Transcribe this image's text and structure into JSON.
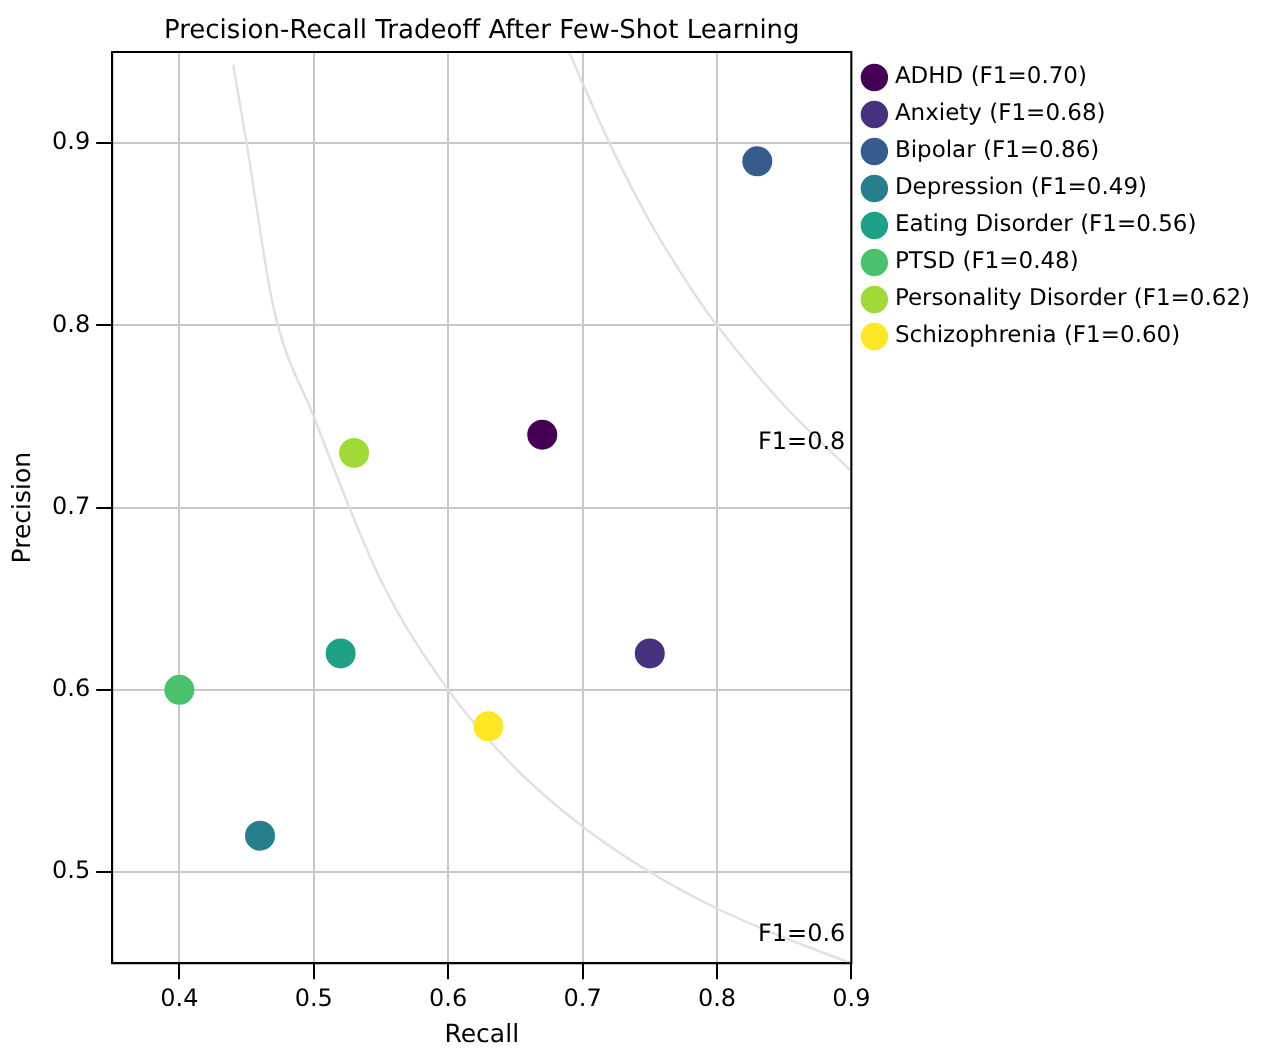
{
  "chart_data": {
    "type": "scatter",
    "title": "Precision-Recall Tradeoff After Few-Shot Learning",
    "xlabel": "Recall",
    "ylabel": "Precision",
    "xlim": [
      0.35,
      0.9
    ],
    "xticks": [
      0.4,
      0.5,
      0.6,
      0.7,
      0.8,
      0.9
    ],
    "ylim": [
      0.45,
      0.95
    ],
    "yticks": [
      0.5,
      0.6,
      0.7,
      0.8,
      0.9
    ],
    "grid": true,
    "legend": "top right",
    "marker": "circle",
    "series": [
      {
        "name": "ADHD (F1=0.70)",
        "color": "#440154",
        "x": [
          0.67
        ],
        "values": [
          0.74
        ]
      },
      {
        "name": "Anxiety (F1=0.68)",
        "color": "#46327e",
        "x": [
          0.75
        ],
        "values": [
          0.62
        ]
      },
      {
        "name": "Bipolar (F1=0.86)",
        "color": "#365c8d",
        "x": [
          0.83
        ],
        "values": [
          0.89
        ]
      },
      {
        "name": "Depression (F1=0.49)",
        "color": "#277f8e",
        "x": [
          0.46
        ],
        "values": [
          0.52
        ]
      },
      {
        "name": "Eating Disorder (F1=0.56)",
        "color": "#1fa187",
        "x": [
          0.52
        ],
        "values": [
          0.62
        ]
      },
      {
        "name": "PTSD (F1=0.48)",
        "color": "#4ac16d",
        "x": [
          0.4
        ],
        "values": [
          0.6
        ]
      },
      {
        "name": "Personality Disorder (F1=0.62)",
        "color": "#a0da39",
        "x": [
          0.53
        ],
        "values": [
          0.73
        ]
      },
      {
        "name": "Schizophrenia (F1=0.60)",
        "color": "#fde725",
        "x": [
          0.63
        ],
        "values": [
          0.58
        ]
      },
      {
        "type": "line",
        "marker": "none",
        "color": "#e0e0e0",
        "x": [
          0.44,
          0.45,
          0.47,
          0.5,
          0.55,
          0.6,
          0.65,
          0.7,
          0.75,
          0.8,
          0.85,
          0.9
        ],
        "values": [
          0.943,
          0.9,
          0.81,
          0.75,
          0.66,
          0.6,
          0.557,
          0.525,
          0.5,
          0.48,
          0.464,
          0.45
        ]
      },
      {
        "type": "line",
        "marker": "none",
        "color": "#e0e0e0",
        "x": [
          0.69,
          0.7,
          0.72,
          0.75,
          0.78,
          0.8,
          0.85,
          0.9
        ],
        "values": [
          0.95,
          0.933,
          0.9,
          0.857,
          0.821,
          0.8,
          0.756,
          0.72
        ]
      }
    ],
    "annotations": [
      "F1=0.6",
      "F1=0.8"
    ]
  }
}
